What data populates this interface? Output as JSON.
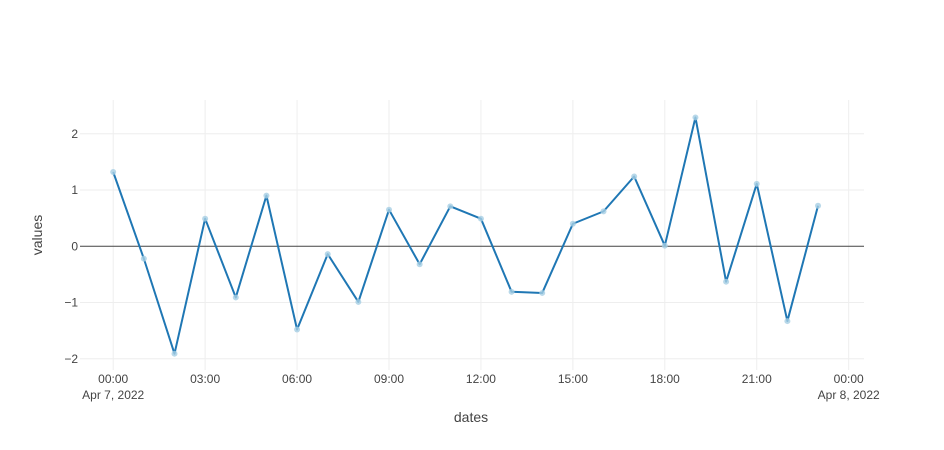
{
  "chart_data": {
    "type": "line",
    "title": "",
    "xlabel": "dates",
    "ylabel": "values",
    "x": [
      "2022-04-07T00:00",
      "2022-04-07T01:00",
      "2022-04-07T02:00",
      "2022-04-07T03:00",
      "2022-04-07T04:00",
      "2022-04-07T05:00",
      "2022-04-07T06:00",
      "2022-04-07T07:00",
      "2022-04-07T08:00",
      "2022-04-07T09:00",
      "2022-04-07T10:00",
      "2022-04-07T11:00",
      "2022-04-07T12:00",
      "2022-04-07T13:00",
      "2022-04-07T14:00",
      "2022-04-07T15:00",
      "2022-04-07T16:00",
      "2022-04-07T17:00",
      "2022-04-07T18:00",
      "2022-04-07T19:00",
      "2022-04-07T20:00",
      "2022-04-07T21:00",
      "2022-04-07T22:00",
      "2022-04-07T23:00"
    ],
    "series": [
      {
        "values": [
          1.32,
          -0.22,
          -1.91,
          0.49,
          -0.91,
          0.9,
          -1.48,
          -0.14,
          -0.99,
          0.65,
          -0.32,
          0.71,
          0.49,
          -0.81,
          -0.83,
          0.4,
          0.62,
          1.24,
          0.01,
          2.29,
          -0.63,
          1.11,
          -1.33,
          0.72
        ],
        "color": "#1f77b4",
        "marker_color": "#a6cee3"
      }
    ],
    "xlim": [
      "2022-04-06T22:55",
      "2022-04-08T00:30"
    ],
    "ylim": [
      -2.2,
      2.6
    ],
    "x_ticks": [
      {
        "time": "2022-04-07T00:00",
        "label": "00:00",
        "sublabel": "Apr 7, 2022"
      },
      {
        "time": "2022-04-07T03:00",
        "label": "03:00",
        "sublabel": ""
      },
      {
        "time": "2022-04-07T06:00",
        "label": "06:00",
        "sublabel": ""
      },
      {
        "time": "2022-04-07T09:00",
        "label": "09:00",
        "sublabel": ""
      },
      {
        "time": "2022-04-07T12:00",
        "label": "12:00",
        "sublabel": ""
      },
      {
        "time": "2022-04-07T15:00",
        "label": "15:00",
        "sublabel": ""
      },
      {
        "time": "2022-04-07T18:00",
        "label": "18:00",
        "sublabel": ""
      },
      {
        "time": "2022-04-07T21:00",
        "label": "21:00",
        "sublabel": ""
      },
      {
        "time": "2022-04-08T00:00",
        "label": "00:00",
        "sublabel": "Apr 8, 2022"
      }
    ],
    "y_ticks": [
      {
        "value": 2,
        "label": "2"
      },
      {
        "value": 1,
        "label": "1"
      },
      {
        "value": 0,
        "label": "0"
      },
      {
        "value": -1,
        "label": "−1"
      },
      {
        "value": -2,
        "label": "−2"
      }
    ],
    "grid": true,
    "zero_line": true,
    "grid_color": "#eeeeee",
    "zero_line_color": "#444444"
  }
}
